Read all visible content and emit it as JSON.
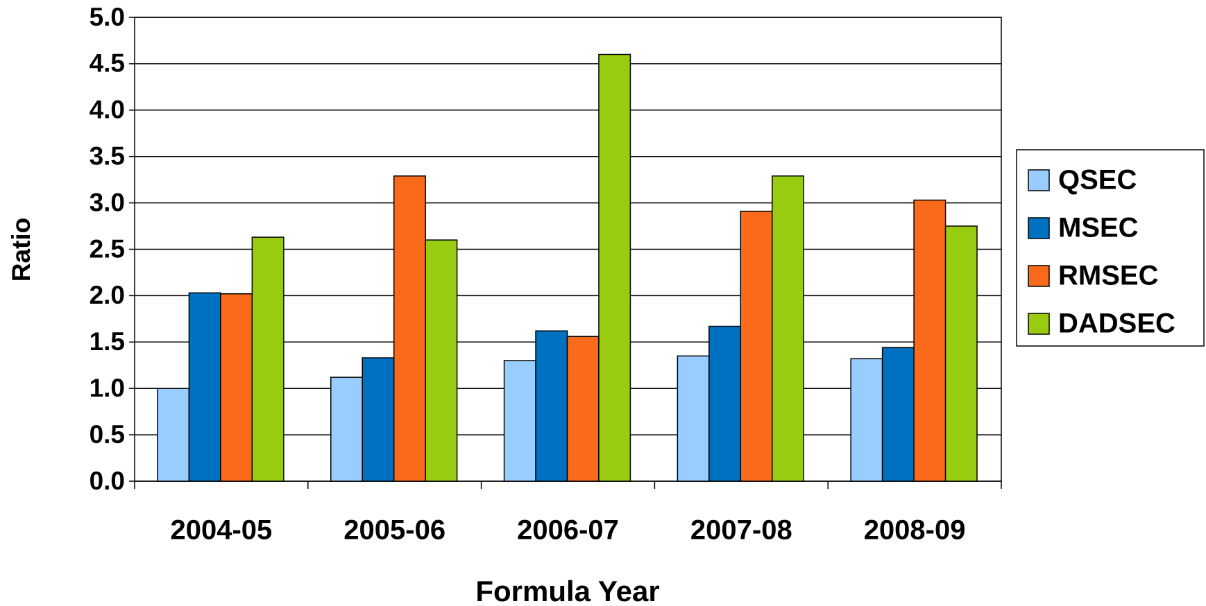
{
  "chart_data": {
    "type": "bar",
    "x_label": "Formula Year",
    "y_label": "Ratio",
    "categories": [
      "2004-05",
      "2005-06",
      "2006-07",
      "2007-08",
      "2008-09"
    ],
    "series": [
      {
        "name": "QSEC",
        "color": "#99ccff",
        "values": [
          1.0,
          1.12,
          1.3,
          1.35,
          1.32
        ]
      },
      {
        "name": "MSEC",
        "color": "#0070c0",
        "values": [
          2.03,
          1.33,
          1.62,
          1.67,
          1.44
        ]
      },
      {
        "name": "RMSEC",
        "color": "#f96b1a",
        "values": [
          2.02,
          3.29,
          1.56,
          2.91,
          3.03
        ]
      },
      {
        "name": "DADSEC",
        "color": "#99cc11",
        "values": [
          2.63,
          2.6,
          4.6,
          3.29,
          2.75
        ]
      }
    ],
    "ylim": [
      0,
      5
    ],
    "yticks": [
      {
        "value": 0,
        "label": "0.0"
      },
      0.5,
      {
        "value": 1,
        "label": "1.0"
      },
      1.5,
      {
        "value": 2,
        "label": "2.0"
      },
      2.5,
      {
        "value": 3,
        "label": "3.0"
      },
      3.5,
      {
        "value": 4,
        "label": "4.0"
      },
      4.5,
      {
        "value": 5,
        "label": "5.0"
      }
    ],
    "grid": true,
    "legend": "right"
  }
}
